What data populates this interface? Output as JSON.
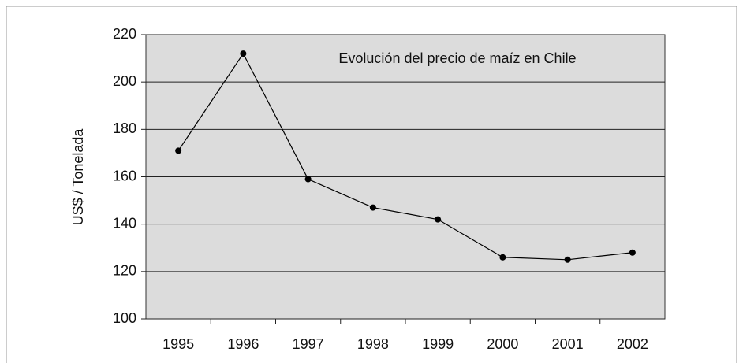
{
  "chart_data": {
    "type": "line",
    "title": "Evolución del precio de maíz en Chile",
    "y_label": "US$ / Tonelada",
    "categories": [
      "1995",
      "1996",
      "1997",
      "1998",
      "1999",
      "2000",
      "2001",
      "2002"
    ],
    "values": [
      171,
      212,
      159,
      147,
      142,
      126,
      125,
      128
    ],
    "color": "#000000",
    "ylim": [
      100,
      220
    ],
    "yticks": [
      100,
      120,
      140,
      160,
      180,
      200,
      220
    ],
    "grid": true
  }
}
